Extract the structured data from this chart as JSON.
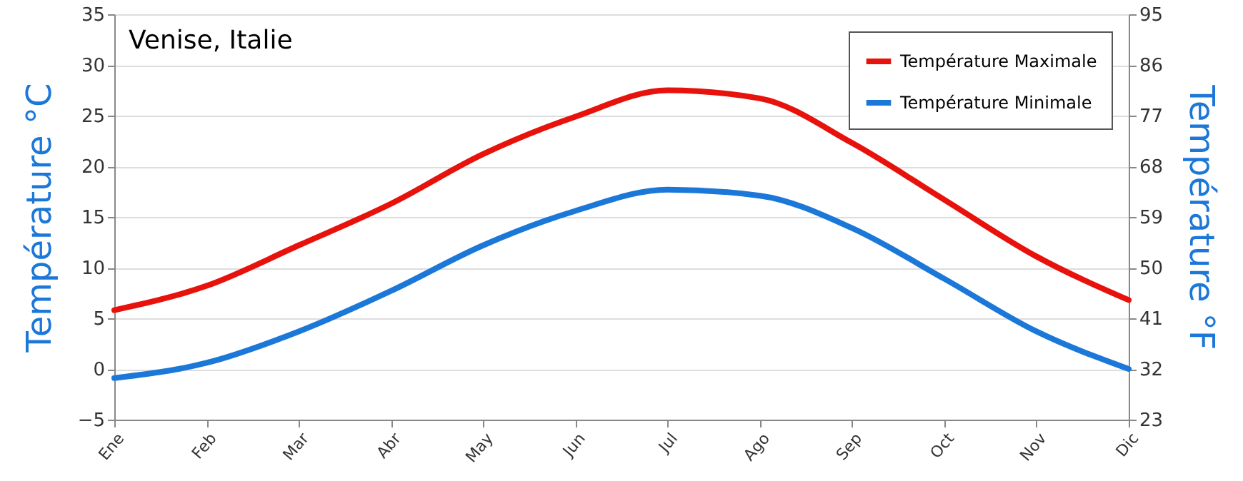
{
  "chart_data": {
    "type": "line",
    "title": "Venise, Italie",
    "ylabel": "Température °C",
    "y2label": "Température °F",
    "categories": [
      "Ene",
      "Feb",
      "Mar",
      "Abr",
      "May",
      "Jun",
      "Jul",
      "Ago",
      "Sep",
      "Oct",
      "Nov",
      "Dic"
    ],
    "series": [
      {
        "name": "Température Maximale",
        "color": "#e8120c",
        "values": [
          5.8,
          8.2,
          12.2,
          16.3,
          21.2,
          24.9,
          27.5,
          26.7,
          22.3,
          16.7,
          11.1,
          6.8
        ]
      },
      {
        "name": "Température Minimale",
        "color": "#1c78d8",
        "values": [
          -0.9,
          0.6,
          3.7,
          7.7,
          12.2,
          15.6,
          17.7,
          17.1,
          13.9,
          8.9,
          3.7,
          0
        ]
      }
    ],
    "ylim": [
      -5,
      35
    ],
    "yticks": [
      -5,
      0,
      5,
      10,
      15,
      20,
      25,
      30,
      35
    ],
    "y2lim": [
      23,
      95
    ],
    "y2ticks": [
      23,
      32,
      41,
      50,
      59,
      68,
      77,
      86,
      95
    ],
    "grid": "y",
    "legend": "top right",
    "marker": "none",
    "line_style": "solid"
  }
}
